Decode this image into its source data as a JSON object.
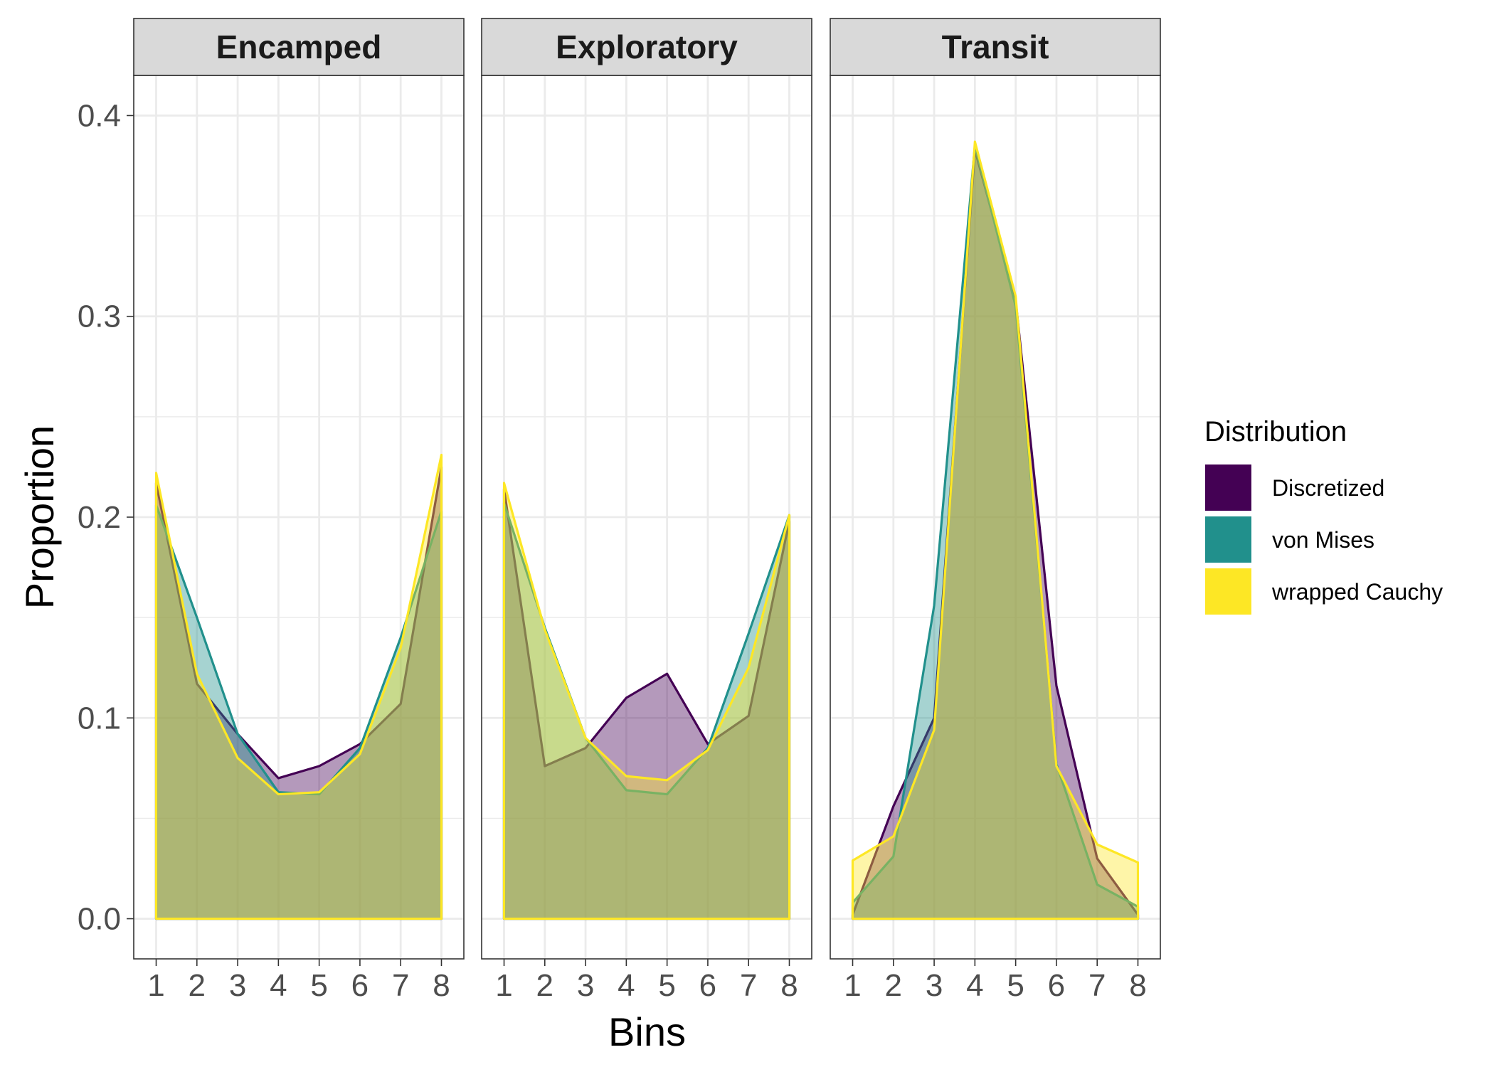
{
  "chart_data": {
    "type": "area",
    "xlabel": "Bins",
    "ylabel": "Proportion",
    "ylim": [
      -0.02,
      0.42
    ],
    "yticks": [
      0.0,
      0.1,
      0.2,
      0.3,
      0.4
    ],
    "ytick_labels": [
      "0.0",
      "0.1",
      "0.2",
      "0.3",
      "0.4"
    ],
    "xlim": [
      0.45,
      8.55
    ],
    "categories": [
      "1",
      "2",
      "3",
      "4",
      "5",
      "6",
      "7",
      "8"
    ],
    "grid": true,
    "legend": {
      "title": "Distribution",
      "placement": "right",
      "entries": [
        {
          "name": "Discretized",
          "color": "#440154"
        },
        {
          "name": "von Mises",
          "color": "#21908C"
        },
        {
          "name": "wrapped Cauchy",
          "color": "#FDE725"
        }
      ]
    },
    "series_colors": [
      "#440154",
      "#21908C",
      "#FDE725"
    ],
    "fill_opacity": 0.4,
    "panels": [
      {
        "title": "Encamped",
        "series": [
          {
            "name": "Discretized",
            "values": [
              0.217,
              0.117,
              0.092,
              0.07,
              0.076,
              0.087,
              0.107,
              0.225
            ]
          },
          {
            "name": "von Mises",
            "values": [
              0.206,
              0.15,
              0.092,
              0.063,
              0.062,
              0.085,
              0.14,
              0.203
            ]
          },
          {
            "name": "wrapped Cauchy",
            "values": [
              0.222,
              0.122,
              0.08,
              0.062,
              0.063,
              0.082,
              0.135,
              0.231
            ]
          }
        ]
      },
      {
        "title": "Exploratory",
        "series": [
          {
            "name": "Discretized",
            "values": [
              0.214,
              0.076,
              0.085,
              0.11,
              0.122,
              0.087,
              0.101,
              0.198
            ]
          },
          {
            "name": "von Mises",
            "values": [
              0.207,
              0.145,
              0.09,
              0.064,
              0.062,
              0.085,
              0.142,
              0.201
            ]
          },
          {
            "name": "wrapped Cauchy",
            "values": [
              0.217,
              0.144,
              0.09,
              0.071,
              0.069,
              0.084,
              0.125,
              0.201
            ]
          }
        ]
      },
      {
        "title": "Transit",
        "series": [
          {
            "name": "Discretized",
            "values": [
              0.002,
              0.056,
              0.1,
              0.383,
              0.308,
              0.116,
              0.03,
              0.002
            ]
          },
          {
            "name": "von Mises",
            "values": [
              0.008,
              0.031,
              0.156,
              0.385,
              0.305,
              0.077,
              0.017,
              0.006
            ]
          },
          {
            "name": "wrapped Cauchy",
            "values": [
              0.029,
              0.041,
              0.094,
              0.387,
              0.31,
              0.076,
              0.037,
              0.028
            ]
          }
        ]
      }
    ]
  }
}
